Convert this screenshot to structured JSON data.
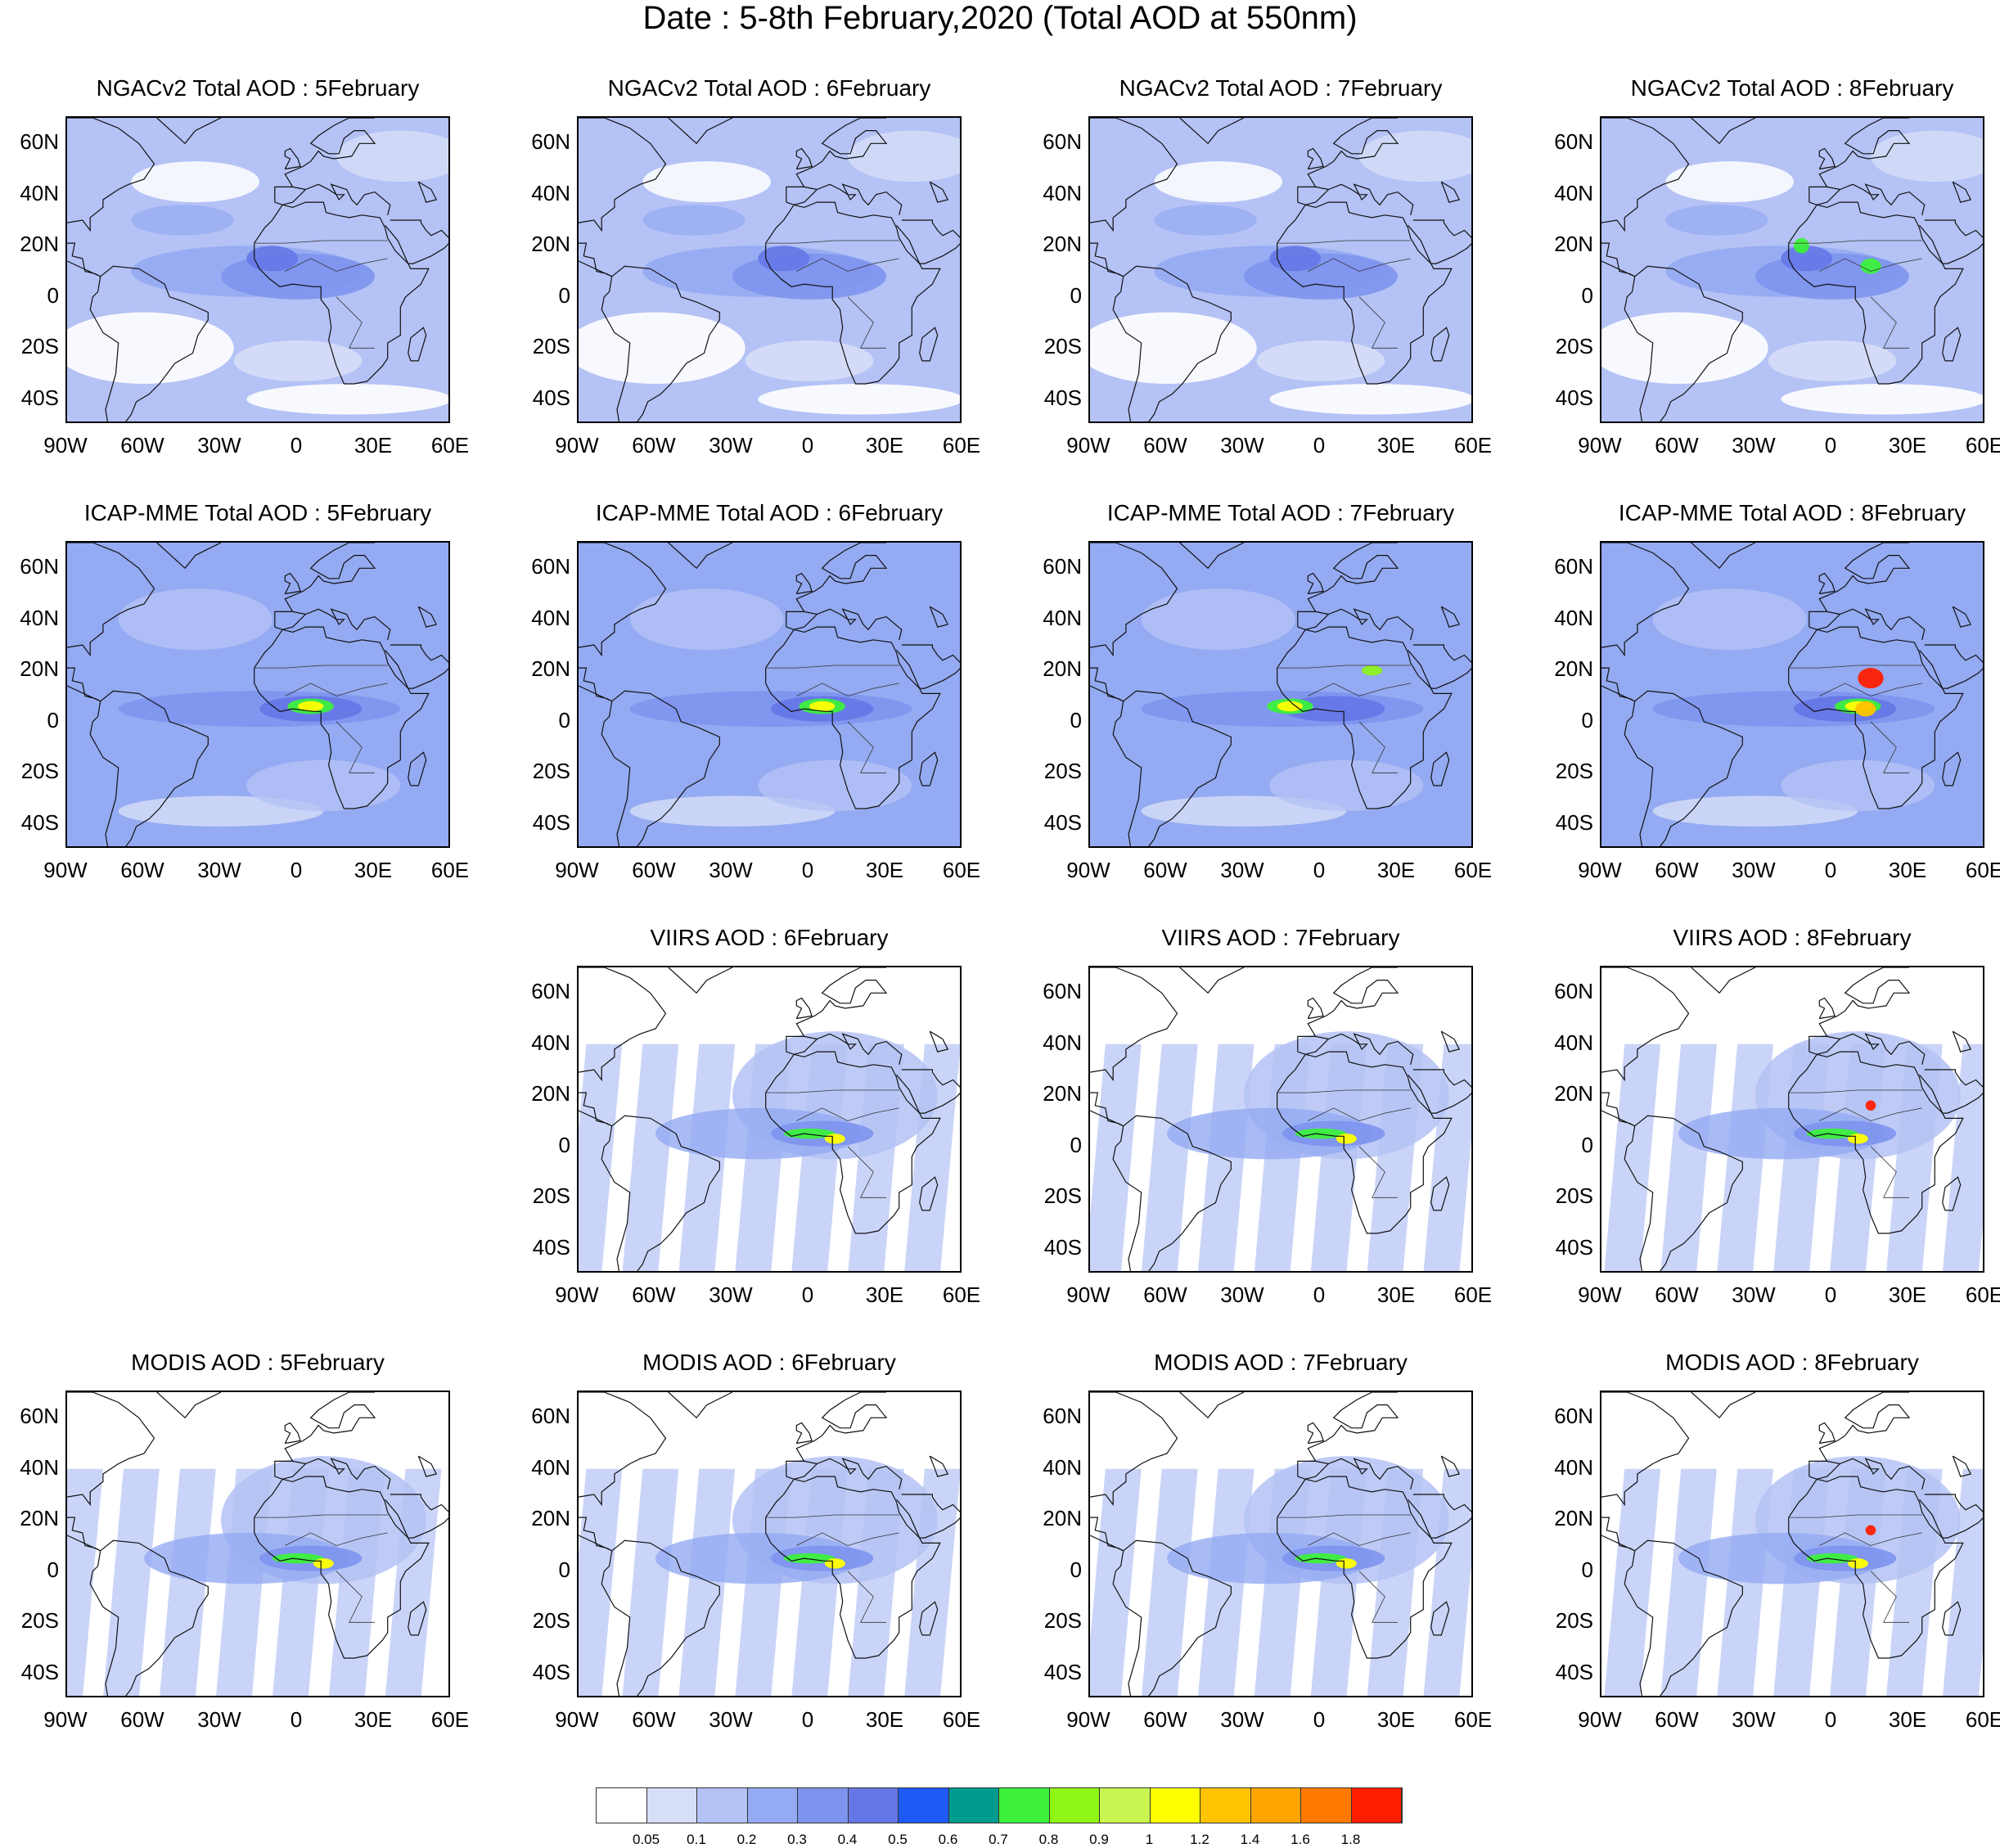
{
  "title": "Date : 5-8th February,2020 (Total AOD at 550nm)",
  "axes": {
    "lat_labels": [
      "60N",
      "40N",
      "20N",
      "0",
      "20S",
      "40S"
    ],
    "lat_values": [
      60,
      40,
      20,
      0,
      -20,
      -40
    ],
    "lon_labels": [
      "90W",
      "60W",
      "30W",
      "0",
      "30E",
      "60E"
    ],
    "lon_values": [
      -90,
      -60,
      -30,
      0,
      30,
      60
    ],
    "lat_range": [
      -50,
      70
    ],
    "lon_range": [
      -90,
      60
    ]
  },
  "panels": [
    {
      "title": "NGACv2 Total AOD : 5February",
      "row": 0,
      "col": 0,
      "kind": "model"
    },
    {
      "title": "NGACv2 Total AOD : 6February",
      "row": 0,
      "col": 1,
      "kind": "model"
    },
    {
      "title": "NGACv2 Total AOD : 7February",
      "row": 0,
      "col": 2,
      "kind": "model"
    },
    {
      "title": "NGACv2 Total AOD : 8February",
      "row": 0,
      "col": 3,
      "kind": "model"
    },
    {
      "title": "ICAP-MME Total AOD : 5February",
      "row": 1,
      "col": 0,
      "kind": "model2"
    },
    {
      "title": "ICAP-MME Total AOD : 6February",
      "row": 1,
      "col": 1,
      "kind": "model2"
    },
    {
      "title": "ICAP-MME Total AOD : 7February",
      "row": 1,
      "col": 2,
      "kind": "model2"
    },
    {
      "title": "ICAP-MME Total AOD : 8February",
      "row": 1,
      "col": 3,
      "kind": "model2"
    },
    {
      "title": "VIIRS AOD : 6February",
      "row": 2,
      "col": 1,
      "kind": "sat"
    },
    {
      "title": "VIIRS AOD : 7February",
      "row": 2,
      "col": 2,
      "kind": "sat"
    },
    {
      "title": "VIIRS AOD : 8February",
      "row": 2,
      "col": 3,
      "kind": "sat"
    },
    {
      "title": "MODIS AOD : 5February",
      "row": 3,
      "col": 0,
      "kind": "sat"
    },
    {
      "title": "MODIS AOD : 6February",
      "row": 3,
      "col": 1,
      "kind": "sat"
    },
    {
      "title": "MODIS AOD : 7February",
      "row": 3,
      "col": 2,
      "kind": "sat"
    },
    {
      "title": "MODIS AOD : 8February",
      "row": 3,
      "col": 3,
      "kind": "sat"
    }
  ],
  "colorbar": {
    "colors": [
      "#ffffff",
      "#d6def8",
      "#b4c2f5",
      "#94aaf2",
      "#7d93ee",
      "#6577e6",
      "#1e5af5",
      "#009b8f",
      "#3cf03c",
      "#8ef514",
      "#c8f550",
      "#ffff00",
      "#ffc300",
      "#ffa500",
      "#ff7a00",
      "#ff1e00"
    ],
    "labels": [
      "0.05",
      "0.1",
      "0.2",
      "0.3",
      "0.4",
      "0.5",
      "0.6",
      "0.7",
      "0.8",
      "0.9",
      "1",
      "1.2",
      "1.4",
      "1.6",
      "1.8"
    ]
  }
}
